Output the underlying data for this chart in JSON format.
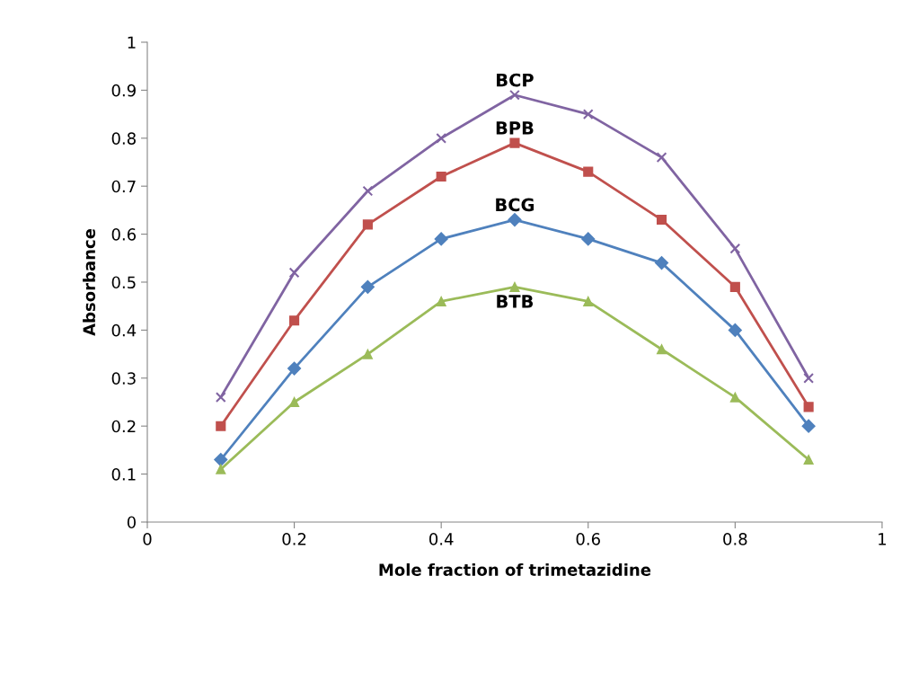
{
  "chart_data": {
    "type": "line",
    "xlabel": "Mole fraction of trimetazidine",
    "ylabel": "Absorbance",
    "x": [
      0.1,
      0.2,
      0.3,
      0.4,
      0.5,
      0.6,
      0.7,
      0.8,
      0.9
    ],
    "series": [
      {
        "name": "BCP",
        "color": "#8064a2",
        "marker": "cross",
        "values": [
          0.26,
          0.52,
          0.69,
          0.8,
          0.89,
          0.85,
          0.76,
          0.57,
          0.3
        ]
      },
      {
        "name": "BPB",
        "color": "#c0504d",
        "marker": "square",
        "values": [
          0.2,
          0.42,
          0.62,
          0.72,
          0.79,
          0.73,
          0.63,
          0.49,
          0.24
        ]
      },
      {
        "name": "BCG",
        "color": "#4f81bd",
        "marker": "diamond",
        "values": [
          0.13,
          0.32,
          0.49,
          0.59,
          0.63,
          0.59,
          0.54,
          0.4,
          0.2
        ]
      },
      {
        "name": "BTB",
        "color": "#9bbb59",
        "marker": "triangle",
        "values": [
          0.11,
          0.25,
          0.35,
          0.46,
          0.49,
          0.46,
          0.36,
          0.26,
          0.13
        ]
      }
    ],
    "xlim": [
      0,
      1
    ],
    "xticks": [
      0,
      {
        "value": 0.2,
        "label": "0.2"
      },
      {
        "value": 0.4,
        "label": "0.4"
      },
      {
        "value": 0.6,
        "label": "0.6"
      },
      {
        "value": 0.8,
        "label": "0.8"
      },
      1
    ],
    "ylim": [
      0,
      1
    ],
    "yticks": [
      0,
      0.1,
      0.2,
      0.3,
      0.4,
      0.5,
      0.6,
      0.7,
      0.8,
      0.9,
      1
    ],
    "grid": false,
    "legend": false,
    "line_style": "solid"
  }
}
